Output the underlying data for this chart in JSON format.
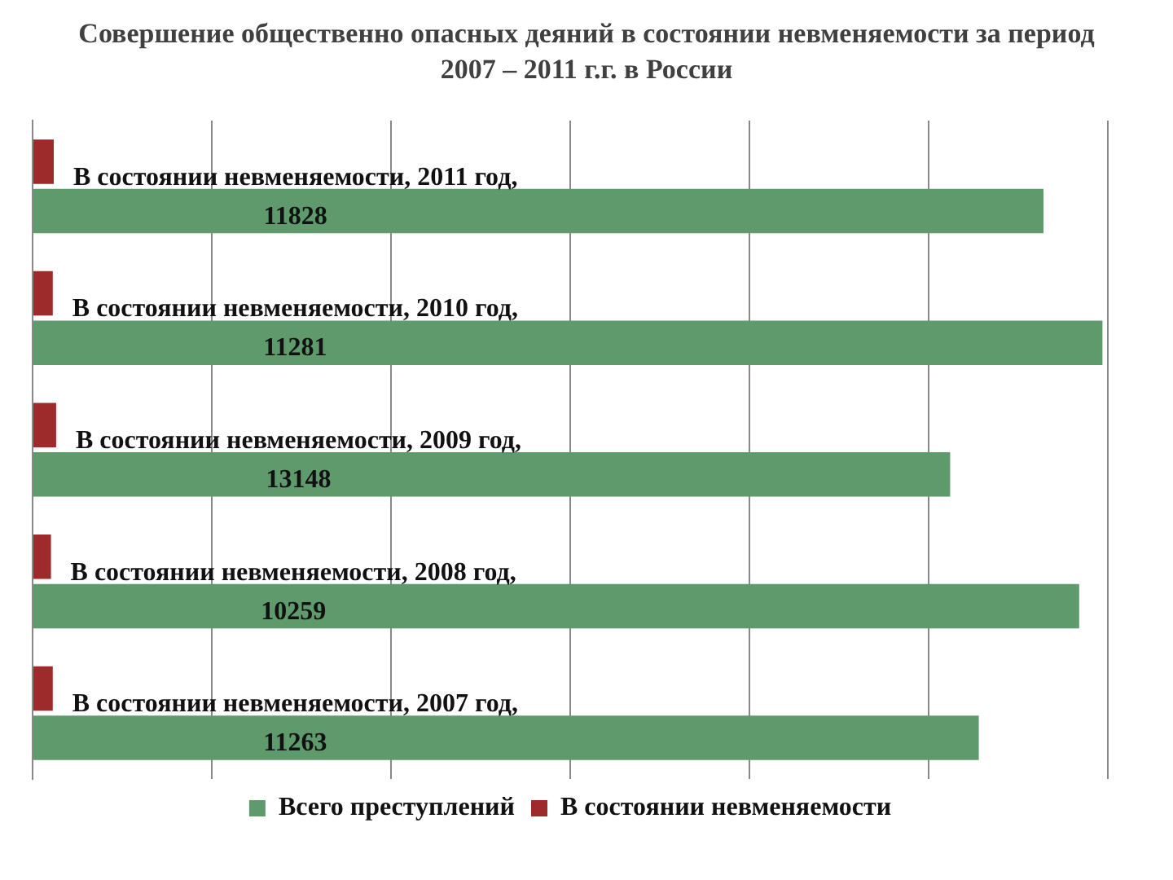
{
  "chart_data": {
    "type": "bar",
    "orientation": "horizontal",
    "title": "Совершение общественно опасных деяний в состоянии невменяемости за период 2007 – 2011 г.г. в России",
    "categories": [
      null,
      null,
      null,
      null,
      null
    ],
    "series": [
      {
        "name": "Всего преступлений",
        "color": "#5e9a6c",
        "values": [
          564100,
          597000,
          512000,
          584000,
          528000
        ]
      },
      {
        "name": "В состоянии невменяемости",
        "color": "#9e2b2b",
        "values": [
          11828,
          11281,
          13148,
          10259,
          11263
        ],
        "value_labels": [
          "В состоянии невменяемости, 2011 год, 11828",
          "В состоянии невменяемости, 2010 год, 11281",
          "В состоянии невменяемости, 2009 год, 13148",
          "В состоянии невменяемости, 2008 год, 10259",
          "В состоянии невменяемости, 2007 год, 11263"
        ]
      }
    ],
    "xlim": [
      0,
      600000
    ],
    "xticks": [
      0,
      100000,
      200000,
      300000,
      400000,
      500000,
      600000
    ],
    "tick_labels": false,
    "grid": "x",
    "legend": "bottom"
  }
}
